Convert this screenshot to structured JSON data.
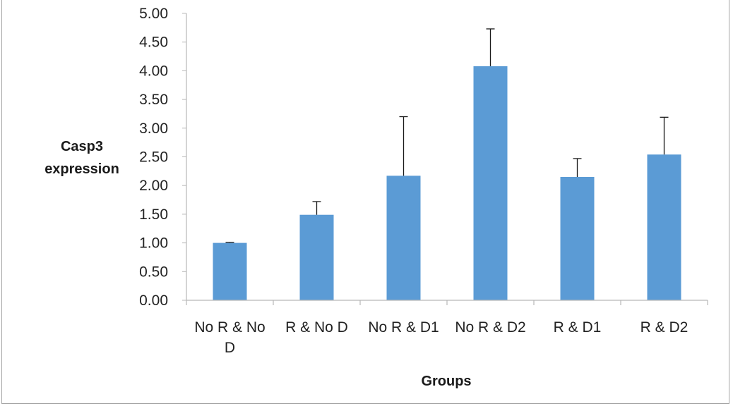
{
  "chart_data": {
    "type": "bar",
    "categories": [
      [
        "No R & No",
        "D"
      ],
      [
        "R & No D"
      ],
      [
        "No R & D1"
      ],
      [
        "No R & D2"
      ],
      [
        "R & D1"
      ],
      [
        "R & D2"
      ]
    ],
    "values": [
      1.0,
      1.49,
      2.17,
      4.08,
      2.15,
      2.54
    ],
    "error_upper": [
      1.01,
      1.72,
      3.2,
      4.73,
      2.47,
      3.19
    ],
    "ylabel": [
      "Casp3",
      "expression"
    ],
    "xlabel": "Groups",
    "ylim": [
      0,
      5
    ],
    "yticks": [
      "0.00",
      "0.50",
      "1.00",
      "1.50",
      "2.00",
      "2.50",
      "3.00",
      "3.50",
      "4.00",
      "4.50",
      "5.00"
    ],
    "grid": false,
    "legend": "none",
    "colors": {
      "bar": "#5b9bd5",
      "axis": "#b8b8b8",
      "error_bar": "#1a1a1a",
      "text": "#222222"
    }
  }
}
